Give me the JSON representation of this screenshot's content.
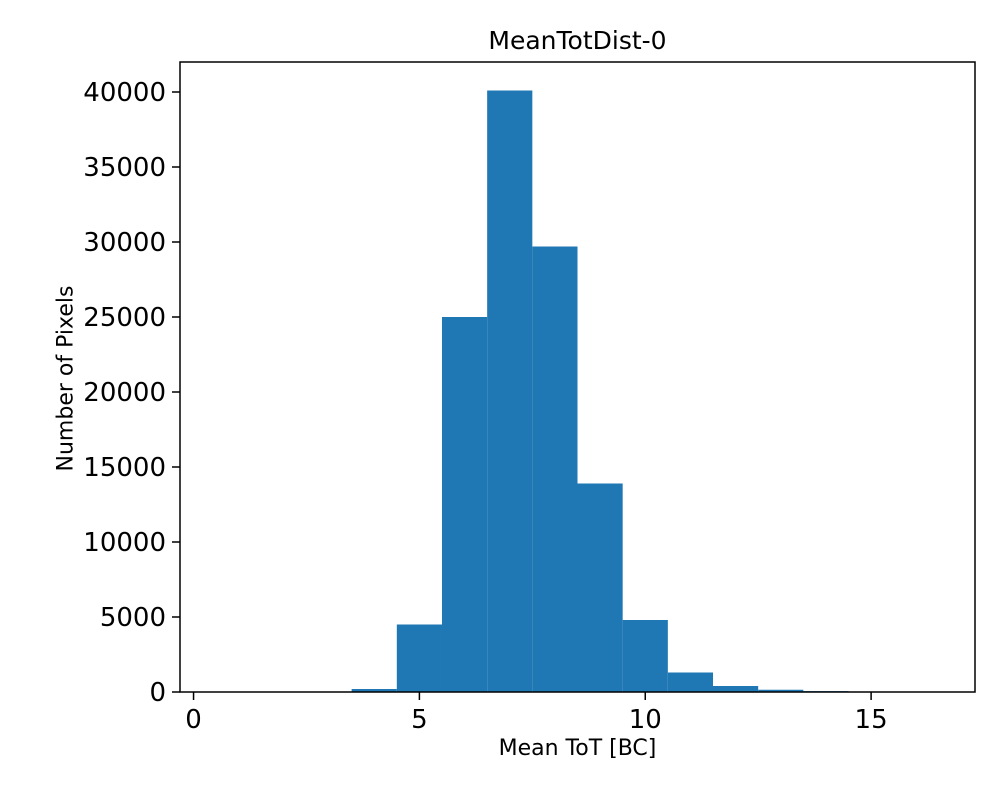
{
  "chart_data": {
    "type": "bar",
    "title": "MeanTotDist-0",
    "xlabel": "Mean ToT [BC]",
    "ylabel": "Number of Pixels",
    "bar_color": "#1f77b4",
    "background_color": "#ffffff",
    "bin_start": 3.5,
    "bin_width": 1,
    "bin_edges": [
      3.5,
      4.5,
      5.5,
      6.5,
      7.5,
      8.5,
      9.5,
      10.5,
      11.5,
      12.5,
      13.5,
      14.5
    ],
    "values": [
      200,
      4500,
      25000,
      40100,
      29700,
      13900,
      4800,
      1300,
      400,
      150,
      60
    ],
    "xlim": [
      -0.3,
      17.3
    ],
    "ylim": [
      0,
      42000
    ],
    "xticks": [
      0,
      5,
      10,
      15
    ],
    "yticks": [
      0,
      5000,
      10000,
      15000,
      20000,
      25000,
      30000,
      35000,
      40000
    ],
    "grid": false,
    "legend": null
  }
}
